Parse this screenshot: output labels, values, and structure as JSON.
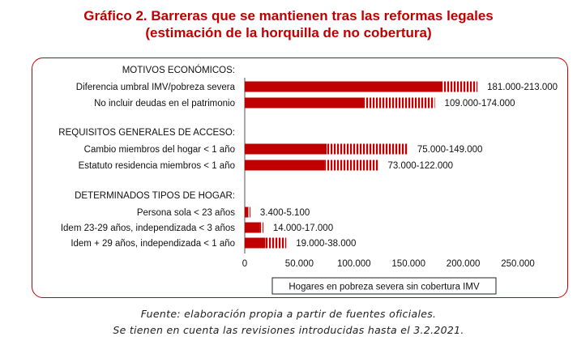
{
  "title_line1": "Gráfico 2. Barreras que se mantienen tras las reformas legales",
  "title_line2": "(estimación de la horquilla de no cobertura)",
  "caption_line1": "Fuente: elaboración propia a partir de fuentes oficiales.",
  "caption_line2": "Se tienen en cuenta las revisiones introducidas hasta el 3.2.2021.",
  "colors": {
    "accent": "#c00000",
    "bar": "#c00000"
  },
  "chart_data": {
    "type": "bar",
    "orientation": "horizontal",
    "xlabel": "Hogares en pobreza severa sin cobertura IMV",
    "xlim": [
      0,
      250000
    ],
    "ticks": [
      {
        "value": 0,
        "label": "0"
      },
      {
        "value": 50000,
        "label": "50.000"
      },
      {
        "value": 100000,
        "label": "100.000"
      },
      {
        "value": 150000,
        "label": "150.000"
      },
      {
        "value": 200000,
        "label": "200.000"
      },
      {
        "value": 250000,
        "label": "250.000"
      }
    ],
    "groups": [
      {
        "label": "MOTIVOS ECONÓMICOS:",
        "items": [
          {
            "label": "Diferencia umbral IMV/pobreza severa",
            "low": 181000,
            "high": 213000,
            "range_label": "181.000-213.000"
          },
          {
            "label": "No incluir deudas en el patrimonio",
            "low": 109000,
            "high": 174000,
            "range_label": "109.000-174.000"
          }
        ]
      },
      {
        "label": "REQUISITOS GENERALES DE ACCESO:",
        "items": [
          {
            "label": "Cambio miembros del hogar  < 1 año",
            "low": 75000,
            "high": 149000,
            "range_label": "75.000-149.000"
          },
          {
            "label": "Estatuto residencia miembros  < 1 año",
            "low": 73000,
            "high": 122000,
            "range_label": "73.000-122.000"
          }
        ]
      },
      {
        "label": "DETERMINADOS TIPOS DE HOGAR:",
        "items": [
          {
            "label": "Persona sola < 23 años",
            "low": 3400,
            "high": 5100,
            "range_label": "3.400-5.100"
          },
          {
            "label": "Idem 23-29 años, independizada < 3 años",
            "low": 14000,
            "high": 17000,
            "range_label": "14.000-17.000"
          },
          {
            "label": "Idem + 29 años, independizada < 1 año",
            "low": 19000,
            "high": 38000,
            "range_label": "19.000-38.000"
          }
        ]
      }
    ]
  }
}
